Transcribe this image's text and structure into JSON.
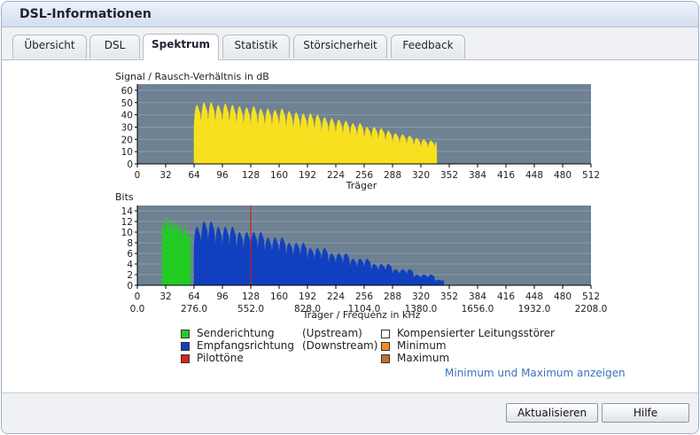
{
  "window": {
    "title": "DSL-Informationen"
  },
  "tabs": [
    {
      "label": "Übersicht",
      "active": false
    },
    {
      "label": "DSL",
      "active": false
    },
    {
      "label": "Spektrum",
      "active": true
    },
    {
      "label": "Statistik",
      "active": false
    },
    {
      "label": "Störsicherheit",
      "active": false
    },
    {
      "label": "Feedback",
      "active": false
    }
  ],
  "chart_data": [
    {
      "type": "area",
      "title": "Signal / Rausch-Verhältnis in dB",
      "xlabel": "Träger",
      "ylabel": "",
      "xlim": [
        0,
        512
      ],
      "ylim": [
        0,
        65
      ],
      "xticks": [
        0,
        32,
        64,
        96,
        128,
        160,
        192,
        224,
        256,
        288,
        320,
        352,
        384,
        416,
        448,
        480,
        512
      ],
      "yticks": [
        0,
        10,
        20,
        30,
        40,
        50,
        60
      ],
      "grid": true,
      "series": [
        {
          "name": "",
          "color": "#f8e020",
          "x": [
            64,
            72,
            80,
            88,
            96,
            104,
            112,
            120,
            128,
            136,
            144,
            152,
            160,
            168,
            176,
            184,
            192,
            200,
            208,
            216,
            224,
            232,
            240,
            248,
            256,
            264,
            272,
            280,
            288,
            296,
            304,
            312,
            320,
            328,
            336,
            338
          ],
          "values": [
            48,
            50,
            50,
            48,
            49,
            48,
            47,
            46,
            47,
            45,
            45,
            44,
            45,
            43,
            42,
            41,
            41,
            40,
            38,
            37,
            36,
            35,
            33,
            33,
            30,
            30,
            29,
            27,
            25,
            24,
            23,
            21,
            20,
            19,
            18,
            0
          ]
        }
      ]
    },
    {
      "type": "area",
      "title": "Bits",
      "xlabel": "Träger / Frequenz in kHz",
      "ylabel": "",
      "xlim": [
        0,
        512
      ],
      "ylim": [
        0,
        15
      ],
      "xticks": [
        0,
        32,
        64,
        96,
        128,
        160,
        192,
        224,
        256,
        288,
        320,
        352,
        384,
        416,
        448,
        480,
        512
      ],
      "yticks": [
        0,
        2,
        4,
        6,
        8,
        10,
        12,
        14
      ],
      "freq_labels": [
        "0.0",
        "276.0",
        "552.0",
        "828.0",
        "1104.0",
        "1380.0",
        "1656.0",
        "1932.0",
        "2208.0"
      ],
      "grid": true,
      "pilot_carrier": 128,
      "series": [
        {
          "name": "Senderichtung (Upstream)",
          "color": "#22cc22",
          "x": [
            28,
            32,
            36,
            40,
            44,
            48,
            52,
            56,
            60
          ],
          "values": [
            12,
            13,
            12,
            12,
            12,
            11,
            11,
            10,
            9
          ]
        },
        {
          "name": "Empfangsrichtung (Downstream)",
          "color": "#1040c0",
          "x": [
            64,
            72,
            80,
            88,
            96,
            104,
            112,
            120,
            128,
            136,
            144,
            152,
            160,
            168,
            176,
            184,
            192,
            200,
            208,
            216,
            224,
            232,
            240,
            248,
            256,
            264,
            272,
            280,
            288,
            296,
            304,
            312,
            320,
            328,
            336,
            344,
            346
          ],
          "values": [
            11,
            12,
            12,
            11,
            11,
            11,
            10,
            10,
            10,
            10,
            9,
            9,
            9,
            8,
            8,
            8,
            7,
            7,
            7,
            6,
            6,
            6,
            5,
            5,
            5,
            4,
            4,
            4,
            3,
            3,
            3,
            2,
            2,
            2,
            1,
            1,
            0
          ]
        }
      ]
    }
  ],
  "legend": {
    "upstream_label": "Senderichtung",
    "upstream_paren": "(Upstream)",
    "downstream_label": "Empfangsrichtung",
    "downstream_paren": "(Downstream)",
    "pilot_label": "Pilottöne",
    "compensated_label": "Kompensierter Leitungsstörer",
    "minimum_label": "Minimum",
    "maximum_label": "Maximum",
    "colors": {
      "upstream": "#22cc22",
      "downstream": "#1040c0",
      "pilot": "#e02020",
      "compensated": "#ffffff",
      "minimum": "#f09020",
      "maximum": "#c07030"
    }
  },
  "links": {
    "minmax": "Minimum und Maximum anzeigen"
  },
  "buttons": {
    "refresh": "Aktualisieren",
    "help": "Hilfe"
  },
  "colors": {
    "plot_bg": "#6e8293",
    "grid": "#8b9cab",
    "pilot": "#cc2020"
  }
}
